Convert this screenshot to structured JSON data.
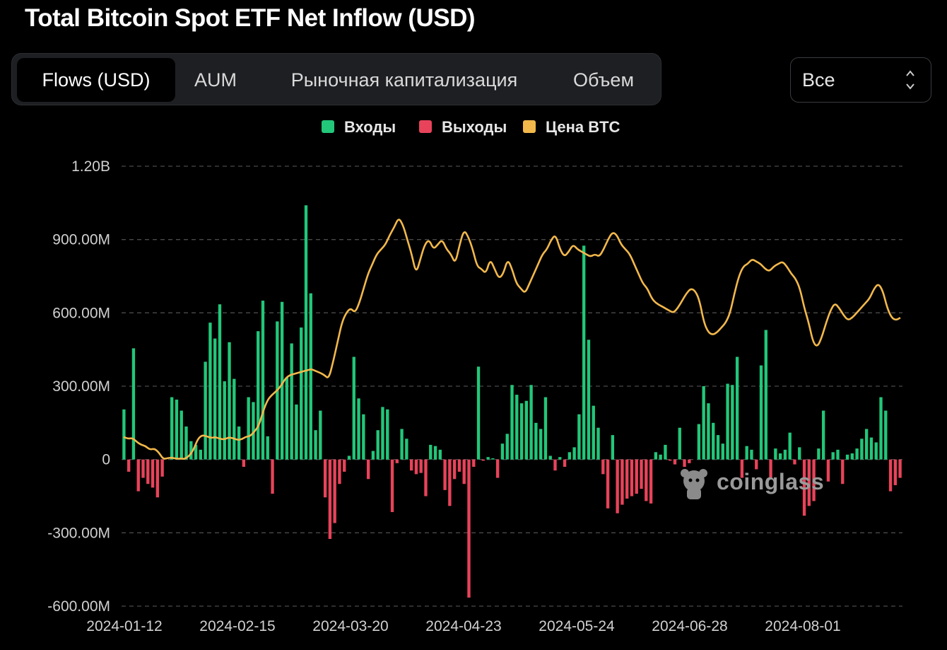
{
  "page": {
    "title": "Total Bitcoin Spot ETF Net Inflow (USD)",
    "tabs": [
      {
        "label": "Flows (USD)",
        "active": true
      },
      {
        "label": "AUM",
        "active": false
      },
      {
        "label": "Рыночная капитализация",
        "active": false
      },
      {
        "label": "Объем",
        "active": false
      }
    ],
    "range_select": {
      "value": "Все"
    },
    "watermark": "coinglass"
  },
  "chart_data": {
    "type": "bar",
    "title": "Total Bitcoin Spot ETF Net Inflow (USD)",
    "ylim": [
      -600000000,
      1200000000
    ],
    "y_ticks": [
      "1.20B",
      "900.00M",
      "600.00M",
      "300.00M",
      "0",
      "-300.00M",
      "-600.00M"
    ],
    "x_ticks": [
      "2024-01-12",
      "2024-02-15",
      "2024-03-20",
      "2024-04-23",
      "2024-05-24",
      "2024-06-28",
      "2024-08-01"
    ],
    "grid": true,
    "legend_position": "top",
    "series": [
      {
        "name": "Входы",
        "color": "#22c77a"
      },
      {
        "name": "Выходы",
        "color": "#e8435a"
      },
      {
        "name": "Цена BTC",
        "color": "#f2b84b"
      }
    ],
    "flows_musd": [
      205,
      -50,
      455,
      -130,
      -75,
      -100,
      -115,
      -155,
      -70,
      0,
      255,
      245,
      200,
      135,
      75,
      60,
      40,
      400,
      560,
      495,
      635,
      320,
      480,
      330,
      135,
      -30,
      255,
      235,
      525,
      650,
      95,
      -140,
      565,
      645,
      335,
      475,
      225,
      540,
      1040,
      680,
      120,
      200,
      -155,
      -325,
      -260,
      -100,
      -50,
      15,
      420,
      250,
      185,
      -80,
      35,
      120,
      215,
      205,
      -215,
      -15,
      125,
      85,
      -45,
      -60,
      -55,
      -150,
      60,
      55,
      40,
      -125,
      -190,
      -80,
      -50,
      -100,
      -565,
      -30,
      380,
      -5,
      10,
      5,
      -75,
      65,
      105,
      305,
      265,
      230,
      240,
      305,
      150,
      125,
      255,
      15,
      -45,
      10,
      -30,
      30,
      50,
      185,
      875,
      490,
      220,
      130,
      -60,
      -200,
      100,
      -220,
      -185,
      -160,
      -150,
      -140,
      -120,
      -170,
      -180,
      30,
      20,
      60,
      -5,
      -20,
      130,
      -30,
      -15,
      0,
      145,
      300,
      230,
      150,
      100,
      65,
      310,
      305,
      420,
      -75,
      55,
      40,
      -40,
      385,
      530,
      -80,
      45,
      25,
      40,
      110,
      -20,
      50,
      -230,
      -190,
      -170,
      45,
      200,
      -90,
      30,
      40,
      -100,
      20,
      25,
      45,
      85,
      125,
      90,
      70,
      255,
      200,
      -130,
      -105,
      -75
    ],
    "btc_price_scaled": [
      92,
      85,
      88,
      72,
      60,
      55,
      40,
      45,
      30,
      2,
      5,
      8,
      3,
      4,
      2,
      15,
      40,
      85,
      100,
      95,
      88,
      92,
      85,
      82,
      90,
      88,
      80,
      82,
      93,
      96,
      115,
      140,
      200,
      245,
      265,
      280,
      300,
      330,
      345,
      350,
      355,
      360,
      365,
      370,
      362,
      355,
      345,
      330,
      400,
      480,
      560,
      600,
      620,
      600,
      640,
      700,
      760,
      800,
      840,
      860,
      880,
      920,
      950,
      990,
      960,
      900,
      840,
      760,
      820,
      880,
      900,
      860,
      880,
      900,
      860,
      840,
      800,
      880,
      940,
      910,
      860,
      790,
      780,
      760,
      820,
      780,
      740,
      760,
      820,
      780,
      720,
      700,
      680,
      720,
      760,
      800,
      840,
      860,
      900,
      920,
      860,
      830,
      850,
      880,
      860,
      850,
      840,
      830,
      840,
      830,
      860,
      900,
      930,
      920,
      880,
      860,
      840,
      800,
      760,
      720,
      700,
      660,
      640,
      630,
      620,
      610,
      600,
      620,
      650,
      680,
      700,
      690,
      650,
      560,
      520,
      510,
      520,
      540,
      560,
      600,
      680,
      750,
      790,
      800,
      820,
      810,
      800,
      780,
      770,
      790,
      800,
      810,
      790,
      760,
      740,
      700,
      620,
      560,
      480,
      460,
      500,
      560,
      610,
      640,
      620,
      590,
      570,
      580,
      600,
      620,
      640,
      660,
      700,
      720,
      690,
      620,
      580,
      570,
      580
    ]
  }
}
